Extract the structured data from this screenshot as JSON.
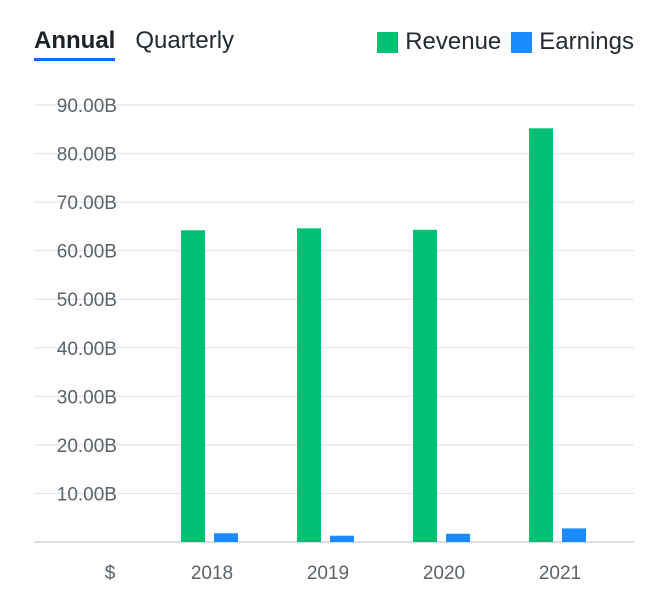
{
  "tabs": [
    {
      "label": "Annual",
      "active": true
    },
    {
      "label": "Quarterly",
      "active": false
    }
  ],
  "legend": [
    {
      "label": "Revenue",
      "color": "#00c073"
    },
    {
      "label": "Earnings",
      "color": "#1a8cff"
    }
  ],
  "chart_data": {
    "type": "bar",
    "categories": [
      "2018",
      "2019",
      "2020",
      "2021"
    ],
    "series": [
      {
        "name": "Revenue",
        "color": "#00c073",
        "values": [
          64.2,
          64.6,
          64.3,
          85.2
        ]
      },
      {
        "name": "Earnings",
        "color": "#1a8cff",
        "values": [
          1.8,
          1.3,
          1.7,
          2.8
        ]
      }
    ],
    "ylim": [
      0,
      90
    ],
    "yticks": [
      10,
      20,
      30,
      40,
      50,
      60,
      70,
      80,
      90
    ],
    "ytick_labels": [
      "10.00B",
      "20.00B",
      "30.00B",
      "40.00B",
      "50.00B",
      "60.00B",
      "70.00B",
      "80.00B",
      "90.00B"
    ],
    "y_unit_label": "$",
    "grid": true,
    "legend_position": "top-right"
  }
}
